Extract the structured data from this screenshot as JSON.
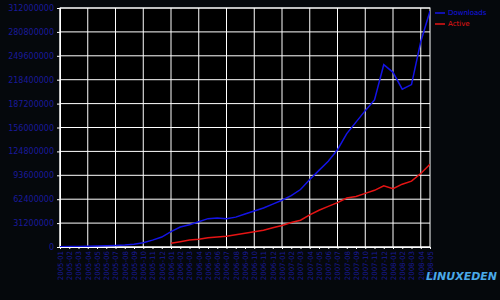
{
  "chart_data": {
    "type": "line",
    "categories": [
      "2005-01",
      "2005-02",
      "2005-03",
      "2005-04",
      "2005-05",
      "2005-06",
      "2005-07",
      "2005-08",
      "2005-09",
      "2005-10",
      "2005-11",
      "2005-12",
      "2006-01",
      "2006-02",
      "2006-03",
      "2006-04",
      "2006-05",
      "2006-06",
      "2006-07",
      "2006-08",
      "2006-09",
      "2006-10",
      "2006-11",
      "2006-12",
      "2007-01",
      "2007-02",
      "2007-03",
      "2007-04",
      "2007-05",
      "2007-06",
      "2007-07",
      "2007-08",
      "2007-09",
      "2007-10",
      "2007-11",
      "2007-12",
      "2008-01",
      "2008-02",
      "2008-03",
      "2008-04",
      "2008-05"
    ],
    "series": [
      {
        "name": "Downloads",
        "color": "#1414e6",
        "values": [
          300000,
          500000,
          800000,
          1000000,
          1300000,
          1600000,
          2000000,
          2600000,
          3500000,
          5500000,
          9000000,
          13000000,
          20000000,
          26000000,
          29000000,
          33000000,
          37000000,
          38000000,
          37000000,
          39000000,
          43000000,
          47000000,
          51000000,
          56000000,
          61000000,
          67000000,
          75000000,
          88000000,
          100000000,
          112000000,
          127000000,
          148000000,
          163000000,
          178000000,
          192000000,
          238000000,
          228000000,
          206000000,
          212000000,
          268000000,
          308000000
        ]
      },
      {
        "name": "Active",
        "color": "#e61414",
        "values": [
          null,
          null,
          null,
          null,
          null,
          null,
          null,
          null,
          null,
          null,
          null,
          null,
          5000000,
          7000000,
          9000000,
          10000000,
          12000000,
          13000000,
          14000000,
          16000000,
          18000000,
          20000000,
          22000000,
          25000000,
          28000000,
          32000000,
          35000000,
          42000000,
          48000000,
          53000000,
          58000000,
          64000000,
          66000000,
          70000000,
          74000000,
          80000000,
          76000000,
          82000000,
          86000000,
          96000000,
          108000000
        ]
      }
    ],
    "ylim": [
      0,
      312000000
    ],
    "yticks": [
      0,
      31200000,
      62400000,
      93600000,
      124800000,
      156000000,
      187200000,
      218400000,
      249600000,
      280800000,
      312000000
    ],
    "grid": true,
    "legend": "top-right",
    "annotations": [
      "LINUXEDEN"
    ]
  }
}
